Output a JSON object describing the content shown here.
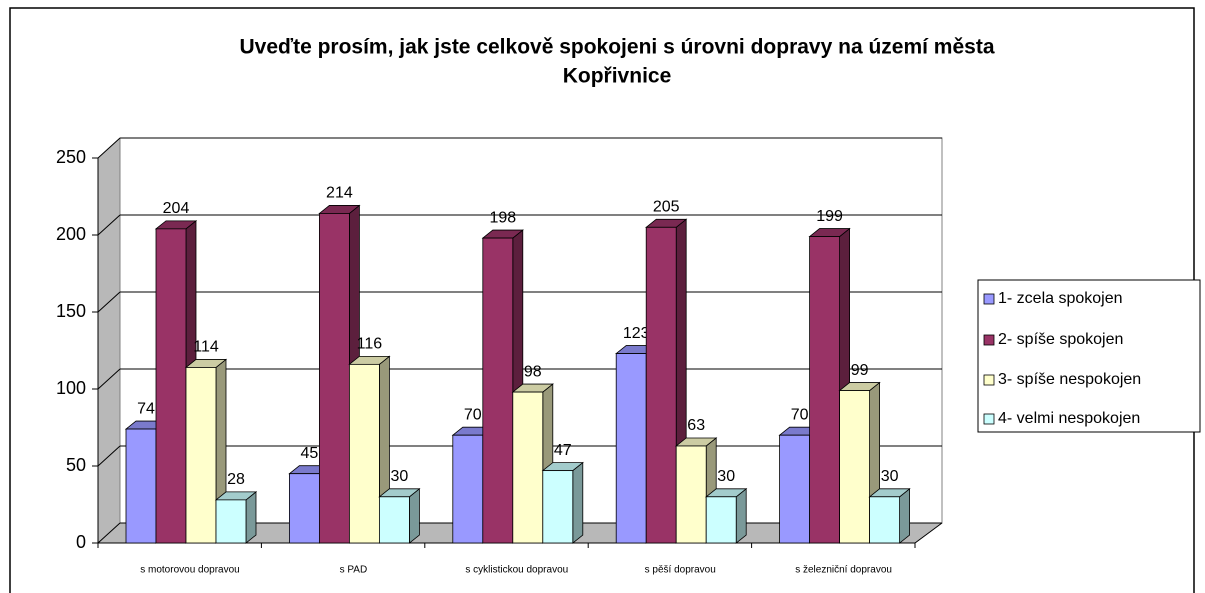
{
  "chart_data": {
    "type": "bar3d",
    "title": [
      "Uveďte prosím, jak jste celkově spokojeni s úrovni dopravy na území města",
      "Kopřivnice"
    ],
    "categories": [
      "s motorovou dopravou",
      "s PAD",
      "s cyklistickou dopravou",
      "s pěší dopravou",
      "s železniční dopravou"
    ],
    "series": [
      {
        "name": "1- zcela spokojen",
        "color": "#9999ff",
        "values": [
          74,
          45,
          70,
          123,
          70
        ]
      },
      {
        "name": "2- spíše spokojen",
        "color": "#993366",
        "values": [
          204,
          214,
          198,
          205,
          199
        ]
      },
      {
        "name": "3- spíše nespokojen",
        "color": "#ffffcc",
        "values": [
          114,
          116,
          98,
          63,
          99
        ]
      },
      {
        "name": "4- velmi nespokojen",
        "color": "#ccffff",
        "values": [
          28,
          30,
          47,
          30,
          30
        ]
      }
    ],
    "ylim": [
      0,
      250
    ],
    "yticks": [
      0,
      50,
      100,
      150,
      200,
      250
    ],
    "grid": true,
    "legend": "right"
  }
}
